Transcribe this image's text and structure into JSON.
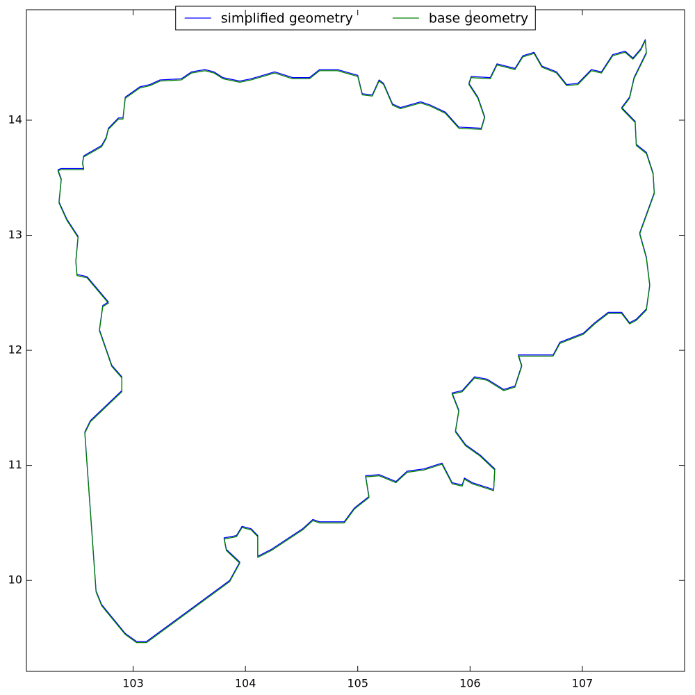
{
  "chart_data": {
    "type": "line",
    "xlim": [
      102.05,
      107.91
    ],
    "ylim": [
      9.21,
      14.96
    ],
    "xticks": [
      103,
      104,
      105,
      106,
      107
    ],
    "yticks": [
      10,
      11,
      12,
      13,
      14
    ],
    "grid": false,
    "legend": "upper center",
    "series": [
      {
        "name": "simplified geometry",
        "color": "#0000ff",
        "x": [
          102.33,
          102.36,
          102.56,
          102.55,
          102.56,
          102.72,
          102.76,
          102.78,
          102.87,
          102.91,
          102.93,
          103.06,
          103.15,
          103.24,
          103.43,
          103.52,
          103.64,
          103.72,
          103.8,
          103.95,
          104.05,
          104.26,
          104.42,
          104.57,
          104.66,
          104.82,
          105.0,
          105.04,
          105.13,
          105.19,
          105.23,
          105.31,
          105.38,
          105.56,
          105.65,
          105.78,
          105.9,
          106.1,
          106.13,
          106.07,
          105.99,
          106.01,
          106.18,
          106.24,
          106.4,
          106.47,
          106.57,
          106.64,
          106.77,
          106.86,
          106.96,
          107.08,
          107.17,
          107.27,
          107.38,
          107.45,
          107.52,
          107.56,
          107.57,
          107.46,
          107.42,
          107.35,
          107.47,
          107.48,
          107.57,
          107.63,
          107.64,
          107.51,
          107.57,
          107.6,
          107.57,
          107.48,
          107.42,
          107.35,
          107.23,
          107.11,
          107.01,
          106.8,
          106.74,
          106.52,
          106.43,
          106.46,
          106.4,
          106.3,
          106.15,
          106.04,
          105.93,
          105.84,
          105.9,
          105.87,
          105.96,
          106.09,
          106.22,
          106.21,
          106.02,
          105.95,
          105.93,
          105.84,
          105.75,
          105.59,
          105.44,
          105.34,
          105.19,
          105.07,
          105.1,
          104.97,
          104.88,
          104.66,
          104.6,
          104.51,
          104.23,
          104.11,
          104.11,
          104.05,
          103.97,
          103.92,
          103.81,
          103.83,
          103.95,
          103.86,
          103.12,
          103.03,
          102.93,
          102.72,
          102.67,
          102.57,
          102.62,
          102.9,
          102.9,
          102.81,
          102.7,
          102.73,
          102.78,
          102.59,
          102.5,
          102.49,
          102.51,
          102.41,
          102.34,
          102.36,
          102.33
        ],
        "values": [
          13.57,
          13.58,
          13.58,
          13.63,
          13.69,
          13.78,
          13.85,
          13.93,
          14.02,
          14.02,
          14.2,
          14.29,
          14.31,
          14.35,
          14.36,
          14.42,
          14.44,
          14.42,
          14.37,
          14.34,
          14.36,
          14.42,
          14.37,
          14.37,
          14.44,
          14.44,
          14.39,
          14.23,
          14.22,
          14.35,
          14.32,
          14.14,
          14.11,
          14.16,
          14.13,
          14.07,
          13.94,
          13.93,
          14.03,
          14.2,
          14.32,
          14.38,
          14.37,
          14.49,
          14.45,
          14.56,
          14.59,
          14.47,
          14.42,
          14.31,
          14.32,
          14.44,
          14.42,
          14.57,
          14.6,
          14.54,
          14.62,
          14.7,
          14.59,
          14.37,
          14.2,
          14.11,
          13.99,
          13.79,
          13.72,
          13.54,
          13.37,
          13.02,
          12.81,
          12.57,
          12.36,
          12.27,
          12.24,
          12.33,
          12.33,
          12.24,
          12.15,
          12.07,
          11.96,
          11.96,
          11.96,
          11.87,
          11.69,
          11.66,
          11.75,
          11.77,
          11.65,
          11.63,
          11.48,
          11.3,
          11.18,
          11.09,
          10.97,
          10.79,
          10.85,
          10.89,
          10.83,
          10.85,
          11.02,
          10.97,
          10.95,
          10.86,
          10.92,
          10.91,
          10.73,
          10.63,
          10.51,
          10.51,
          10.53,
          10.45,
          10.27,
          10.21,
          10.39,
          10.45,
          10.47,
          10.39,
          10.37,
          10.27,
          10.16,
          10.0,
          9.47,
          9.47,
          9.54,
          9.79,
          9.91,
          11.29,
          11.39,
          11.65,
          11.77,
          11.87,
          12.18,
          12.39,
          12.42,
          12.64,
          12.66,
          12.78,
          12.99,
          13.14,
          13.29,
          13.49,
          13.57
        ]
      },
      {
        "name": "base geometry",
        "color": "#008000",
        "x": [
          102.33,
          102.36,
          102.56,
          102.55,
          102.56,
          102.72,
          102.76,
          102.78,
          102.87,
          102.91,
          102.93,
          103.06,
          103.15,
          103.24,
          103.43,
          103.52,
          103.64,
          103.72,
          103.8,
          103.95,
          104.05,
          104.26,
          104.42,
          104.57,
          104.66,
          104.82,
          105.0,
          105.04,
          105.13,
          105.19,
          105.23,
          105.31,
          105.38,
          105.56,
          105.65,
          105.78,
          105.9,
          106.1,
          106.13,
          106.07,
          105.99,
          106.01,
          106.18,
          106.24,
          106.4,
          106.47,
          106.57,
          106.64,
          106.77,
          106.86,
          106.96,
          107.08,
          107.17,
          107.27,
          107.38,
          107.45,
          107.52,
          107.56,
          107.57,
          107.46,
          107.42,
          107.35,
          107.47,
          107.48,
          107.57,
          107.63,
          107.64,
          107.51,
          107.57,
          107.6,
          107.57,
          107.48,
          107.42,
          107.35,
          107.23,
          107.11,
          107.01,
          106.8,
          106.74,
          106.52,
          106.43,
          106.46,
          106.4,
          106.3,
          106.15,
          106.04,
          105.93,
          105.84,
          105.9,
          105.87,
          105.96,
          106.09,
          106.22,
          106.21,
          106.02,
          105.95,
          105.93,
          105.84,
          105.75,
          105.59,
          105.44,
          105.34,
          105.19,
          105.07,
          105.1,
          104.97,
          104.88,
          104.66,
          104.6,
          104.51,
          104.23,
          104.11,
          104.11,
          104.05,
          103.97,
          103.92,
          103.81,
          103.83,
          103.95,
          103.86,
          103.12,
          103.03,
          102.93,
          102.72,
          102.67,
          102.57,
          102.62,
          102.9,
          102.9,
          102.81,
          102.7,
          102.73,
          102.78,
          102.59,
          102.5,
          102.49,
          102.51,
          102.41,
          102.34,
          102.36,
          102.33
        ],
        "values": [
          13.56,
          13.57,
          13.57,
          13.62,
          13.68,
          13.77,
          13.84,
          13.92,
          14.01,
          14.01,
          14.19,
          14.28,
          14.3,
          14.34,
          14.35,
          14.41,
          14.43,
          14.41,
          14.36,
          14.33,
          14.35,
          14.41,
          14.36,
          14.36,
          14.43,
          14.43,
          14.38,
          14.22,
          14.21,
          14.34,
          14.31,
          14.13,
          14.1,
          14.15,
          14.12,
          14.06,
          13.93,
          13.92,
          14.02,
          14.19,
          14.31,
          14.37,
          14.36,
          14.48,
          14.44,
          14.55,
          14.58,
          14.46,
          14.41,
          14.3,
          14.31,
          14.43,
          14.41,
          14.56,
          14.59,
          14.53,
          14.61,
          14.69,
          14.58,
          14.36,
          14.19,
          14.1,
          13.98,
          13.78,
          13.71,
          13.53,
          13.36,
          13.01,
          12.8,
          12.56,
          12.35,
          12.26,
          12.23,
          12.32,
          12.32,
          12.23,
          12.14,
          12.06,
          11.95,
          11.95,
          11.95,
          11.86,
          11.68,
          11.65,
          11.74,
          11.76,
          11.64,
          11.62,
          11.47,
          11.29,
          11.17,
          11.08,
          10.96,
          10.78,
          10.84,
          10.88,
          10.82,
          10.84,
          11.01,
          10.96,
          10.94,
          10.85,
          10.91,
          10.9,
          10.72,
          10.62,
          10.5,
          10.5,
          10.52,
          10.44,
          10.26,
          10.2,
          10.38,
          10.44,
          10.46,
          10.38,
          10.36,
          10.26,
          10.15,
          9.99,
          9.46,
          9.46,
          9.53,
          9.78,
          9.9,
          11.28,
          11.38,
          11.64,
          11.76,
          11.86,
          12.17,
          12.38,
          12.41,
          12.63,
          12.65,
          12.77,
          12.98,
          13.13,
          13.28,
          13.48,
          13.56
        ]
      }
    ]
  }
}
